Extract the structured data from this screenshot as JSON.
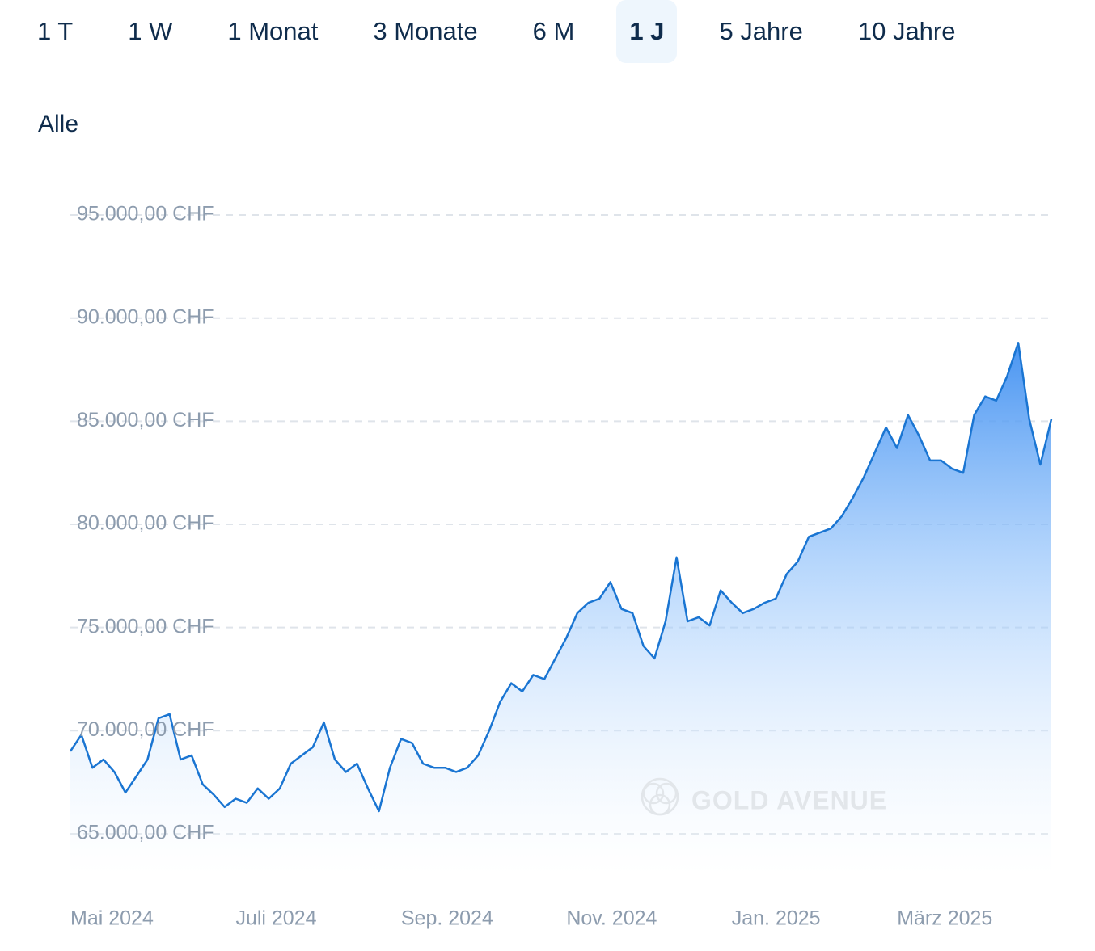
{
  "tabs": [
    {
      "label": "1 T",
      "selected": false
    },
    {
      "label": "1 W",
      "selected": false
    },
    {
      "label": "1 Monat",
      "selected": false
    },
    {
      "label": "3 Monate",
      "selected": false
    },
    {
      "label": "6 M",
      "selected": false
    },
    {
      "label": "1 J",
      "selected": true
    },
    {
      "label": "5 Jahre",
      "selected": false
    },
    {
      "label": "10 Jahre",
      "selected": false
    }
  ],
  "filter": "Alle",
  "chart_data": {
    "type": "area",
    "watermark": "GOLD AVENUE",
    "categories": [
      "Mai 2024",
      null,
      null,
      null,
      null,
      null,
      null,
      null,
      null,
      null,
      null,
      null,
      null,
      null,
      null,
      "Juli 2024",
      null,
      null,
      null,
      null,
      null,
      null,
      null,
      null,
      null,
      null,
      null,
      null,
      null,
      null,
      "Sep. 2024",
      null,
      null,
      null,
      null,
      null,
      null,
      null,
      null,
      null,
      null,
      null,
      null,
      null,
      null,
      "Nov. 2024",
      null,
      null,
      null,
      null,
      null,
      null,
      null,
      null,
      null,
      null,
      null,
      null,
      null,
      null,
      "Jan. 2025",
      null,
      null,
      null,
      null,
      null,
      null,
      null,
      null,
      null,
      null,
      null,
      null,
      null,
      null,
      "März 2025",
      null,
      null,
      null,
      null,
      null,
      null,
      null,
      null,
      null,
      null,
      null,
      null,
      null,
      null
    ],
    "values": [
      69000,
      69800,
      68200,
      68600,
      68000,
      67000,
      67800,
      68600,
      70600,
      70800,
      68600,
      68800,
      67400,
      66900,
      66300,
      66700,
      66500,
      67200,
      66700,
      67200,
      68400,
      68800,
      69200,
      70400,
      68600,
      68000,
      68400,
      67200,
      66100,
      68200,
      69600,
      69400,
      68400,
      68200,
      68200,
      68000,
      68200,
      68800,
      70000,
      71400,
      72300,
      71900,
      72700,
      72500,
      73500,
      74500,
      75700,
      76200,
      76400,
      77200,
      75900,
      75700,
      74100,
      73500,
      75300,
      78400,
      75300,
      75500,
      75100,
      76800,
      76200,
      75700,
      75900,
      76200,
      76400,
      77600,
      78200,
      79400,
      79600,
      79800,
      80400,
      81300,
      82300,
      83500,
      84700,
      83700,
      85300,
      84300,
      83100,
      83100,
      82700,
      82500,
      85300,
      86200,
      86000,
      87200,
      88800,
      85100,
      82900,
      85100
    ],
    "color": "#1a75d2",
    "ylim": [
      63000,
      97000
    ],
    "yticks": [
      {
        "value": 65000,
        "label": "65.000,00 CHF"
      },
      {
        "value": 70000,
        "label": "70.000,00 CHF"
      },
      {
        "value": 75000,
        "label": "75.000,00 CHF"
      },
      {
        "value": 80000,
        "label": "80.000,00 CHF"
      },
      {
        "value": 85000,
        "label": "85.000,00 CHF"
      },
      {
        "value": 90000,
        "label": "90.000,00 CHF"
      },
      {
        "value": 95000,
        "label": "95.000,00 CHF"
      }
    ],
    "grid": true
  }
}
